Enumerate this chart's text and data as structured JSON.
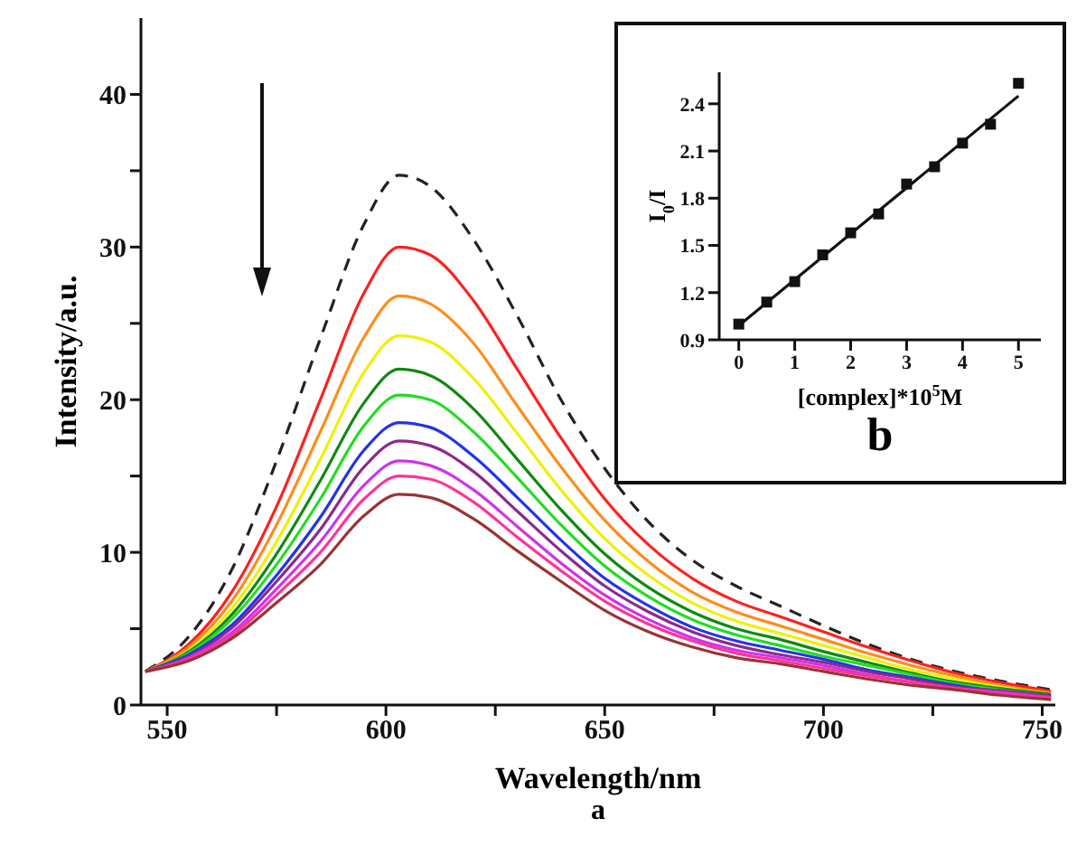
{
  "chart_data": [
    {
      "type": "line",
      "xlabel": "Wavelength/nm",
      "ylabel": "Intensity/a.u.",
      "annotations": [
        "a"
      ],
      "x": [
        545,
        555,
        565,
        575,
        585,
        595,
        603,
        610,
        620,
        630,
        640,
        650,
        660,
        670,
        680,
        690,
        700,
        710,
        720,
        730,
        740,
        752
      ],
      "series": [
        {
          "color": "#222222",
          "line_style": "dashed",
          "values": [
            2.2,
            4.5,
            9,
            16,
            24,
            31.5,
            34.7,
            34,
            30.5,
            25.5,
            20,
            15.5,
            12,
            9.5,
            7.8,
            6.5,
            5.2,
            4,
            3,
            2.2,
            1.6,
            1.0
          ]
        },
        {
          "color": "#ff2020",
          "values": [
            2.2,
            4,
            7.5,
            13,
            20,
            27,
            30,
            29.5,
            26.5,
            22,
            17.5,
            13.5,
            10.5,
            8.3,
            6.8,
            5.8,
            4.8,
            3.8,
            2.9,
            2.1,
            1.5,
            0.9
          ]
        },
        {
          "color": "#ff8c1a",
          "values": [
            2.2,
            3.8,
            6.9,
            11.8,
            17.9,
            24.1,
            26.8,
            26.3,
            23.7,
            19.6,
            15.6,
            12.1,
            9.4,
            7.4,
            6.1,
            5.2,
            4.3,
            3.4,
            2.6,
            1.9,
            1.3,
            0.8
          ]
        },
        {
          "color": "#f0f000",
          "values": [
            2.2,
            3.6,
            6.4,
            10.7,
            16.1,
            21.8,
            24.2,
            23.8,
            21.4,
            17.8,
            14.1,
            10.9,
            8.5,
            6.7,
            5.5,
            4.7,
            3.9,
            3.1,
            2.3,
            1.7,
            1.2,
            0.7
          ]
        },
        {
          "color": "#118811",
          "values": [
            2.2,
            3.5,
            6.0,
            9.9,
            14.7,
            19.8,
            22,
            21.6,
            19.4,
            16.1,
            12.8,
            9.9,
            7.7,
            6.1,
            5.0,
            4.3,
            3.5,
            2.8,
            2.1,
            1.5,
            1.1,
            0.7
          ]
        },
        {
          "color": "#22dd22",
          "values": [
            2.2,
            3.4,
            5.7,
            9.2,
            13.5,
            18.3,
            20.3,
            20.0,
            17.9,
            14.9,
            11.8,
            9.1,
            7.1,
            5.6,
            4.6,
            3.9,
            3.2,
            2.6,
            2.0,
            1.4,
            1.0,
            0.6
          ]
        },
        {
          "color": "#2233ee",
          "values": [
            2.2,
            3.3,
            5.3,
            8.5,
            12.3,
            16.7,
            18.5,
            18.2,
            16.3,
            13.6,
            10.8,
            8.3,
            6.5,
            5.1,
            4.2,
            3.6,
            3.0,
            2.3,
            1.8,
            1.3,
            0.9,
            0.6
          ]
        },
        {
          "color": "#8b2a8b",
          "values": [
            2.2,
            3.2,
            5.1,
            8.1,
            11.5,
            15.6,
            17.3,
            17.0,
            15.3,
            12.7,
            10.1,
            7.8,
            6.1,
            4.8,
            3.9,
            3.3,
            2.8,
            2.2,
            1.7,
            1.2,
            0.95,
            0.6
          ]
        },
        {
          "color": "#cc33ee",
          "values": [
            2.2,
            3.1,
            4.8,
            7.6,
            10.7,
            14.4,
            16,
            15.7,
            14.1,
            11.7,
            9.3,
            7.2,
            5.6,
            4.4,
            3.6,
            3.1,
            2.6,
            2.0,
            1.5,
            1.1,
            0.85,
            0.5
          ]
        },
        {
          "color": "#ff3399",
          "values": [
            2.2,
            3.0,
            4.6,
            7.2,
            10,
            13.5,
            15,
            14.8,
            13.3,
            11,
            8.8,
            6.8,
            5.3,
            4.2,
            3.4,
            2.9,
            2.4,
            1.9,
            1.5,
            1.1,
            0.75,
            0.45
          ]
        },
        {
          "color": "#993333",
          "values": [
            2.2,
            2.9,
            4.4,
            6.7,
            9.2,
            12.4,
            13.8,
            13.6,
            12.2,
            10.1,
            8.1,
            6.2,
            4.8,
            3.8,
            3.1,
            2.7,
            2.2,
            1.7,
            1.3,
            1.0,
            0.65,
            0.35
          ]
        }
      ],
      "xlim": [
        544,
        753
      ],
      "xticks": [
        550,
        {
          "value": 575,
          "label": null
        },
        600,
        {
          "value": 625,
          "label": null
        },
        650,
        {
          "value": 675,
          "label": null
        },
        700,
        {
          "value": 725,
          "label": null
        },
        750
      ],
      "ylim": [
        0,
        45
      ],
      "yticks": [
        0,
        {
          "value": 5,
          "label": null
        },
        10,
        {
          "value": 15,
          "label": null
        },
        20,
        {
          "value": 25,
          "label": null
        },
        30,
        {
          "value": 35,
          "label": null
        },
        40
      ],
      "marker": "none",
      "grid": false,
      "legend": false
    },
    {
      "type": "scatter",
      "xlabel": "[complex]*10$^{5}$M",
      "ylabel": "I$_{0}$/I",
      "annotations": [
        "b"
      ],
      "series": [
        {
          "color": "#111111",
          "marker": "square",
          "x": [
            0,
            0.5,
            1,
            1.5,
            2,
            2.5,
            3,
            3.5,
            4,
            4.5,
            5
          ],
          "values": [
            1.0,
            1.14,
            1.27,
            1.44,
            1.58,
            1.7,
            1.89,
            2.0,
            2.15,
            2.27,
            2.53
          ]
        },
        {
          "type": "line",
          "color": "#111111",
          "x": [
            0,
            5
          ],
          "values": [
            0.99,
            2.45
          ]
        }
      ],
      "xlim": [
        -0.35,
        5.4
      ],
      "xticks": [
        0,
        1,
        2,
        3,
        4,
        5
      ],
      "ylim": [
        0.9,
        2.6
      ],
      "yticks": [
        0.9,
        1.2,
        1.5,
        1.8,
        2.1,
        2.4
      ]
    }
  ]
}
